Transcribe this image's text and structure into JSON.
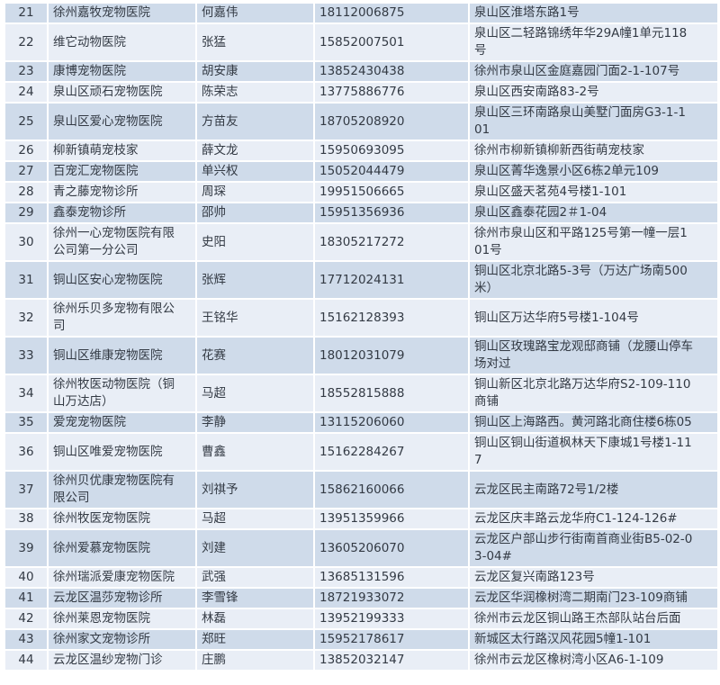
{
  "colors": {
    "row_shaded": "#cfdbea",
    "row_light": "#e9eef6",
    "grid_line": "#ffffff",
    "text": "#333a44"
  },
  "rows": [
    {
      "no": "21",
      "name": "徐州嘉牧宠物医院",
      "contact": "何嘉伟",
      "phone": "18112006875",
      "address": "泉山区淮塔东路1号"
    },
    {
      "no": "22",
      "name": "维它动物医院",
      "contact": "张猛",
      "phone": "15852007501",
      "address": "泉山区二轻路锦绣年华29A幢1单元118\n号"
    },
    {
      "no": "23",
      "name": "康博宠物医院",
      "contact": "胡安康",
      "phone": "13852430438",
      "address": "徐州市泉山区金庭嘉园门面2-1-107号"
    },
    {
      "no": "24",
      "name": "泉山区顽石宠物医院",
      "contact": "陈荣志",
      "phone": "13775886776",
      "address": "泉山区西安南路83-2号"
    },
    {
      "no": "25",
      "name": "泉山区爱心宠物医院",
      "contact": "方苗友",
      "phone": "18705208920",
      "address": "泉山区三环南路泉山美墅门面房G3-1-1\n01"
    },
    {
      "no": "26",
      "name": "柳新镇萌宠枝家",
      "contact": "薛文龙",
      "phone": "15950693095",
      "address": "徐州市柳新镇柳新西街萌宠枝家"
    },
    {
      "no": "27",
      "name": "百宠汇宠物医院",
      "contact": "单兴权",
      "phone": "15052044479",
      "address": "泉山区菁华逸景小区6栋2单元109"
    },
    {
      "no": "28",
      "name": "青之藤宠物诊所",
      "contact": "周琛",
      "phone": "19951506665",
      "address": "泉山区盛天茗苑4号楼1-101"
    },
    {
      "no": "29",
      "name": "鑫泰宠物诊所",
      "contact": "邵帅",
      "phone": "15951356936",
      "address": "泉山区鑫泰花园2＃1-04"
    },
    {
      "no": "30",
      "name": "徐州一心宠物医院有限\n公司第一分公司",
      "contact": "史阳",
      "phone": "18305217272",
      "address": "徐州市泉山区和平路125号第一幢一层1\n01号"
    },
    {
      "no": "31",
      "name": "铜山区安心宠物医院",
      "contact": "张辉",
      "phone": "17712024131",
      "address": "铜山区北京北路5-3号（万达广场南500\n米）"
    },
    {
      "no": "32",
      "name": "徐州乐贝多宠物有限公\n司",
      "contact": "王铭华",
      "phone": "15162128393",
      "address": "铜山区万达华府5号楼1-104号"
    },
    {
      "no": "33",
      "name": "铜山区维康宠物医院",
      "contact": "花赛",
      "phone": "18012031079",
      "address": "铜山区玫瑰路宝龙观邸商铺（龙腰山停车\n场对过"
    },
    {
      "no": "34",
      "name": "徐州牧医动物医院（铜\n山万达店）",
      "contact": "马超",
      "phone": "18552815888",
      "address": "铜山新区北京北路万达华府S2-109-110\n商铺"
    },
    {
      "no": "35",
      "name": "爱宠宠物医院",
      "contact": "李静",
      "phone": "13115206060",
      "address": "铜山区上海路西。黄河路北商住楼6栋05"
    },
    {
      "no": "36",
      "name": "铜山区唯爱宠物医院",
      "contact": "曹鑫",
      "phone": "15162284267",
      "address": "铜山区铜山街道枫林天下康城1号楼1-11\n7"
    },
    {
      "no": "37",
      "name": "徐州贝优康宠物医院有\n限公司",
      "contact": "刘祺予",
      "phone": "15862160066",
      "address": "云龙区民主南路72号1/2楼"
    },
    {
      "no": "38",
      "name": "徐州牧医宠物医院",
      "contact": "马超",
      "phone": "13951359966",
      "address": "云龙区庆丰路云龙华府C1-124-126#"
    },
    {
      "no": "39",
      "name": "徐州爱慕宠物医院",
      "contact": "刘建",
      "phone": "13605206070",
      "address": "云龙区户部山步行街南首商业街B5-02-0\n3-04#"
    },
    {
      "no": "40",
      "name": "徐州瑞派爱康宠物医院",
      "contact": "武强",
      "phone": "13685131596",
      "address": "云龙区复兴南路123号"
    },
    {
      "no": "41",
      "name": "云龙区温莎宠物诊所",
      "contact": "李雪锋",
      "phone": "18721933072",
      "address": "云龙区华润橡树湾二期南门23-109商铺"
    },
    {
      "no": "42",
      "name": "徐州莱恩宠物医院",
      "contact": "林磊",
      "phone": "13952199333",
      "address": "徐州市云龙区铜山路王杰部队站台后面"
    },
    {
      "no": "43",
      "name": "徐州家文宠物诊所",
      "contact": "郑旺",
      "phone": "15952178617",
      "address": "新城区太行路汉风花园5幢1-101"
    },
    {
      "no": "44",
      "name": "云龙区温纱宠物门诊",
      "contact": "庄鹏",
      "phone": "13852032147",
      "address": "徐州市云龙区橡树湾小区A6-1-109"
    }
  ]
}
